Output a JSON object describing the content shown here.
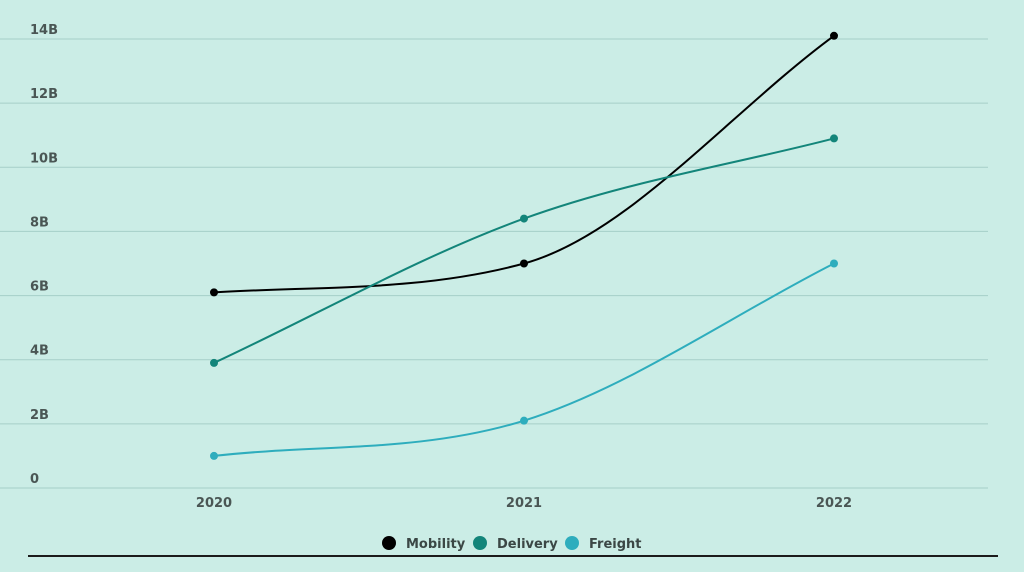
{
  "chart_data": {
    "type": "line",
    "title": "",
    "xlabel": "",
    "ylabel": "",
    "categories": [
      "2020",
      "2021",
      "2022"
    ],
    "ylim": [
      0,
      14
    ],
    "y_ticks": [
      {
        "value": 0,
        "label": "0"
      },
      {
        "value": 2,
        "label": "2B"
      },
      {
        "value": 4,
        "label": "4B"
      },
      {
        "value": 6,
        "label": "6B"
      },
      {
        "value": 8,
        "label": "8B"
      },
      {
        "value": 10,
        "label": "10B"
      },
      {
        "value": 12,
        "label": "12B"
      },
      {
        "value": 14,
        "label": "14B"
      }
    ],
    "grid": true,
    "legend_position": "bottom",
    "series": [
      {
        "name": "Mobility",
        "color": "#000000",
        "values": [
          6.1,
          7.0,
          14.1
        ]
      },
      {
        "name": "Delivery",
        "color": "#13857a",
        "values": [
          3.9,
          8.4,
          10.9
        ]
      },
      {
        "name": "Freight",
        "color": "#2eadbd",
        "values": [
          1.0,
          2.1,
          7.0
        ]
      }
    ]
  },
  "colors": {
    "background": "#cbede6",
    "gridline": "#a6cfc8",
    "baseline": "#1b1b1b",
    "tick_text": "#4a5654"
  }
}
